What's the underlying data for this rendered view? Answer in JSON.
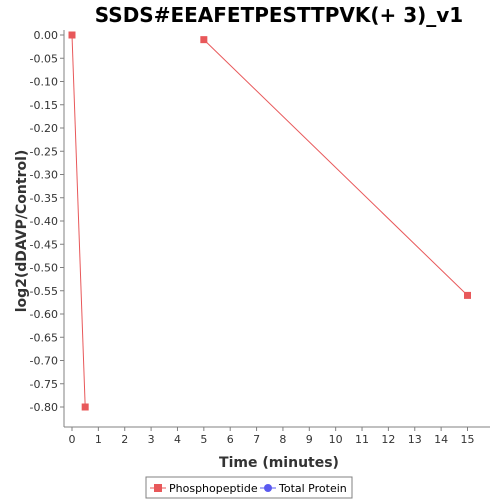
{
  "chart_data": {
    "type": "line",
    "title": "SSDS#EEAFETPESTTPVK(+ 3)_v1",
    "xlabel": "Time (minutes)",
    "ylabel": "log2(dDAVP/Control)",
    "xlim": [
      0,
      15.6
    ],
    "ylim": [
      -0.845,
      0.0
    ],
    "x_ticks": [
      0,
      1,
      2,
      3,
      4,
      5,
      6,
      7,
      8,
      9,
      10,
      11,
      12,
      13,
      14,
      15
    ],
    "y_ticks": [
      0.0,
      -0.05,
      -0.1,
      -0.15,
      -0.2,
      -0.25,
      -0.3,
      -0.35,
      -0.4,
      -0.45,
      -0.5,
      -0.55,
      -0.6,
      -0.65,
      -0.7,
      -0.75,
      -0.8
    ],
    "y_tick_labels": [
      "0.00",
      "-0.05",
      "-0.10",
      "-0.15",
      "-0.20",
      "-0.25",
      "-0.30",
      "-0.35",
      "-0.40",
      "-0.45",
      "-0.50",
      "-0.55",
      "-0.60",
      "-0.65",
      "-0.70",
      "-0.75",
      "-0.80"
    ],
    "grid": false,
    "legend_position": "bottom",
    "series": [
      {
        "name": "Phosphopeptide",
        "color": "#e8585a",
        "marker": "square",
        "points": [
          [
            0,
            0.0
          ],
          [
            0.5,
            -0.8
          ]
        ],
        "points_2": [
          [
            5,
            -0.01
          ],
          [
            15,
            -0.56
          ]
        ]
      },
      {
        "name": "Total Protein",
        "color": "#5a5af0",
        "marker": "circle",
        "points": [],
        "points_2": []
      }
    ]
  }
}
